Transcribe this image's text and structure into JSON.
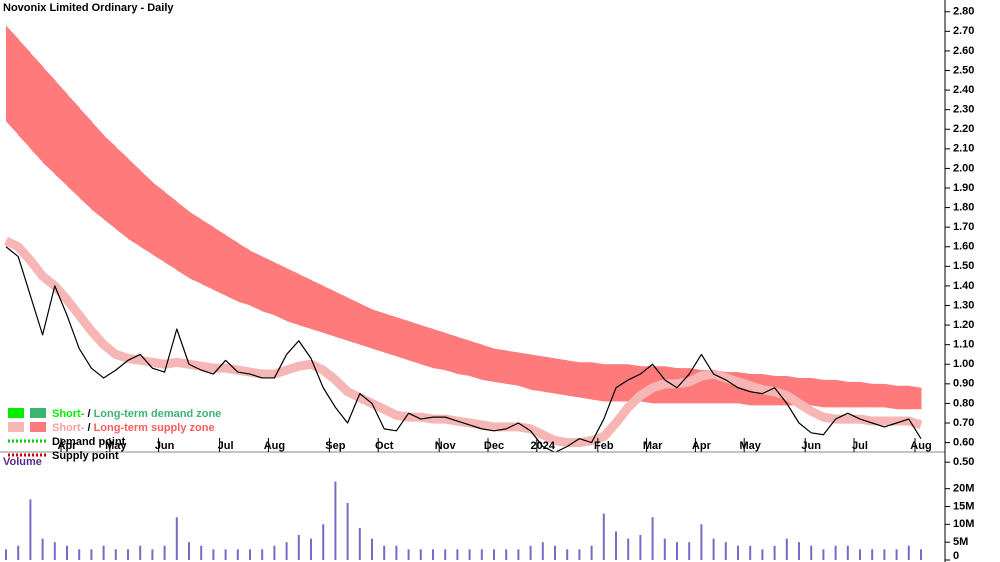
{
  "chart_data": {
    "type": "stock",
    "title": "Novonix Limited Ordinary - Daily",
    "volume_title": "Volume",
    "categories": [
      null,
      null,
      null,
      null,
      null,
      "Apr",
      null,
      null,
      null,
      "May",
      null,
      null,
      null,
      "Jun",
      null,
      null,
      null,
      null,
      "Jul",
      null,
      null,
      null,
      "Aug",
      null,
      null,
      null,
      null,
      "Sep",
      null,
      null,
      null,
      "Oct",
      null,
      null,
      null,
      null,
      "Nov",
      null,
      null,
      null,
      "Dec",
      null,
      null,
      null,
      "2024",
      null,
      null,
      null,
      null,
      "Feb",
      null,
      null,
      null,
      "Mar",
      null,
      null,
      null,
      "Apr",
      null,
      null,
      null,
      "May",
      null,
      null,
      null,
      null,
      "Jun",
      null,
      null,
      null,
      "Jul",
      null,
      null,
      null,
      null,
      "Aug"
    ],
    "close": [
      1.6,
      1.55,
      1.35,
      1.15,
      1.4,
      1.25,
      1.08,
      0.98,
      0.93,
      0.97,
      1.02,
      1.05,
      0.98,
      0.96,
      1.18,
      1.0,
      0.97,
      0.95,
      1.02,
      0.96,
      0.95,
      0.93,
      0.93,
      1.05,
      1.12,
      1.03,
      0.88,
      0.78,
      0.7,
      0.85,
      0.8,
      0.67,
      0.66,
      0.75,
      0.72,
      0.73,
      0.73,
      0.71,
      0.69,
      0.67,
      0.66,
      0.67,
      0.7,
      0.66,
      0.58,
      0.55,
      0.58,
      0.62,
      0.6,
      0.72,
      0.88,
      0.92,
      0.95,
      1.0,
      0.92,
      0.88,
      0.95,
      1.05,
      0.95,
      0.92,
      0.88,
      0.86,
      0.85,
      0.88,
      0.8,
      0.7,
      0.65,
      0.64,
      0.72,
      0.75,
      0.72,
      0.7,
      0.68,
      0.7,
      0.72,
      0.62
    ],
    "short_term": [
      1.63,
      1.6,
      1.53,
      1.45,
      1.4,
      1.33,
      1.25,
      1.17,
      1.1,
      1.05,
      1.03,
      1.02,
      1.01,
      1.0,
      1.01,
      1.0,
      0.99,
      0.98,
      0.98,
      0.97,
      0.96,
      0.95,
      0.95,
      0.97,
      0.99,
      1.0,
      0.97,
      0.92,
      0.86,
      0.83,
      0.8,
      0.77,
      0.74,
      0.73,
      0.73,
      0.72,
      0.72,
      0.71,
      0.7,
      0.69,
      0.68,
      0.68,
      0.68,
      0.67,
      0.64,
      0.61,
      0.6,
      0.6,
      0.61,
      0.63,
      0.7,
      0.78,
      0.84,
      0.88,
      0.9,
      0.9,
      0.91,
      0.94,
      0.95,
      0.93,
      0.91,
      0.89,
      0.87,
      0.86,
      0.84,
      0.8,
      0.76,
      0.73,
      0.72,
      0.72,
      0.72,
      0.71,
      0.71,
      0.71,
      0.71,
      0.69
    ],
    "long_upper": [
      2.73,
      2.66,
      2.59,
      2.52,
      2.45,
      2.38,
      2.31,
      2.24,
      2.17,
      2.11,
      2.05,
      1.99,
      1.93,
      1.88,
      1.83,
      1.78,
      1.74,
      1.7,
      1.66,
      1.62,
      1.58,
      1.55,
      1.52,
      1.49,
      1.46,
      1.43,
      1.4,
      1.37,
      1.34,
      1.31,
      1.28,
      1.26,
      1.24,
      1.22,
      1.2,
      1.18,
      1.16,
      1.14,
      1.12,
      1.1,
      1.08,
      1.07,
      1.06,
      1.05,
      1.04,
      1.03,
      1.02,
      1.01,
      1.01,
      1.0,
      1.0,
      1.0,
      0.99,
      0.99,
      0.99,
      0.98,
      0.98,
      0.97,
      0.97,
      0.96,
      0.96,
      0.95,
      0.95,
      0.94,
      0.94,
      0.93,
      0.93,
      0.92,
      0.92,
      0.91,
      0.91,
      0.9,
      0.9,
      0.89,
      0.89,
      0.88
    ],
    "long_lower": [
      2.24,
      2.17,
      2.1,
      2.03,
      1.97,
      1.91,
      1.85,
      1.79,
      1.74,
      1.69,
      1.64,
      1.6,
      1.56,
      1.52,
      1.48,
      1.44,
      1.41,
      1.38,
      1.35,
      1.32,
      1.3,
      1.27,
      1.25,
      1.22,
      1.2,
      1.18,
      1.16,
      1.14,
      1.12,
      1.1,
      1.08,
      1.06,
      1.04,
      1.02,
      1.0,
      0.98,
      0.97,
      0.95,
      0.94,
      0.92,
      0.91,
      0.9,
      0.89,
      0.87,
      0.86,
      0.85,
      0.84,
      0.83,
      0.82,
      0.81,
      0.81,
      0.81,
      0.81,
      0.8,
      0.8,
      0.8,
      0.8,
      0.8,
      0.8,
      0.8,
      0.8,
      0.79,
      0.79,
      0.79,
      0.79,
      0.79,
      0.79,
      0.78,
      0.78,
      0.78,
      0.78,
      0.78,
      0.78,
      0.77,
      0.77,
      0.77
    ],
    "volume": [
      3,
      4,
      17,
      6,
      5,
      4,
      3,
      3,
      4,
      3,
      3,
      4,
      3,
      4,
      12,
      5,
      4,
      3,
      3,
      3,
      3,
      3,
      4,
      5,
      7,
      6,
      10,
      22,
      16,
      9,
      6,
      4,
      4,
      3,
      3,
      3,
      3,
      3,
      3,
      3,
      3,
      3,
      3,
      4,
      5,
      4,
      3,
      3,
      4,
      13,
      8,
      6,
      7,
      12,
      6,
      5,
      5,
      10,
      6,
      5,
      4,
      4,
      3,
      4,
      6,
      5,
      4,
      3,
      4,
      4,
      3,
      3,
      3,
      3,
      4,
      3
    ],
    "colors": {
      "close": "#000000",
      "short_term": "#f7b6b6",
      "long_term": "#ff7b7b",
      "volume": "#7b68c8"
    },
    "ylim": [
      0.46,
      2.86
    ],
    "yticks": [
      {
        "value": 0.5,
        "label": "0.50"
      },
      {
        "value": 0.6,
        "label": "0.60"
      },
      {
        "value": 0.7,
        "label": "0.70"
      },
      {
        "value": 0.8,
        "label": "0.80"
      },
      {
        "value": 0.9,
        "label": "0.90"
      },
      {
        "value": 1.0,
        "label": "1.00"
      },
      {
        "value": 1.1,
        "label": "1.10"
      },
      {
        "value": 1.2,
        "label": "1.20"
      },
      {
        "value": 1.3,
        "label": "1.30"
      },
      {
        "value": 1.4,
        "label": "1.40"
      },
      {
        "value": 1.5,
        "label": "1.50"
      },
      {
        "value": 1.6,
        "label": "1.60"
      },
      {
        "value": 1.7,
        "label": "1.70"
      },
      {
        "value": 1.8,
        "label": "1.80"
      },
      {
        "value": 1.9,
        "label": "1.90"
      },
      {
        "value": 2.0,
        "label": "2.00"
      },
      {
        "value": 2.1,
        "label": "2.10"
      },
      {
        "value": 2.2,
        "label": "2.20"
      },
      {
        "value": 2.3,
        "label": "2.30"
      },
      {
        "value": 2.4,
        "label": "2.40"
      },
      {
        "value": 2.5,
        "label": "2.50"
      },
      {
        "value": 2.6,
        "label": "2.60"
      },
      {
        "value": 2.7,
        "label": "2.70"
      },
      {
        "value": 2.8,
        "label": "2.80"
      }
    ],
    "y2lim": [
      0,
      30
    ],
    "y2ticks": [
      0,
      {
        "value": 5,
        "label": "5M"
      },
      {
        "value": 10,
        "label": "10M"
      },
      {
        "value": 15,
        "label": "15M"
      },
      {
        "value": 20,
        "label": "20M"
      }
    ],
    "legend": [
      {
        "parts": [
          "Short-",
          " / ",
          "Long-term demand zone"
        ]
      },
      {
        "parts": [
          "Short-",
          " / ",
          "Long-term supply zone"
        ]
      },
      {
        "parts": [
          "Demand point"
        ]
      },
      {
        "parts": [
          "Supply point"
        ]
      }
    ]
  }
}
